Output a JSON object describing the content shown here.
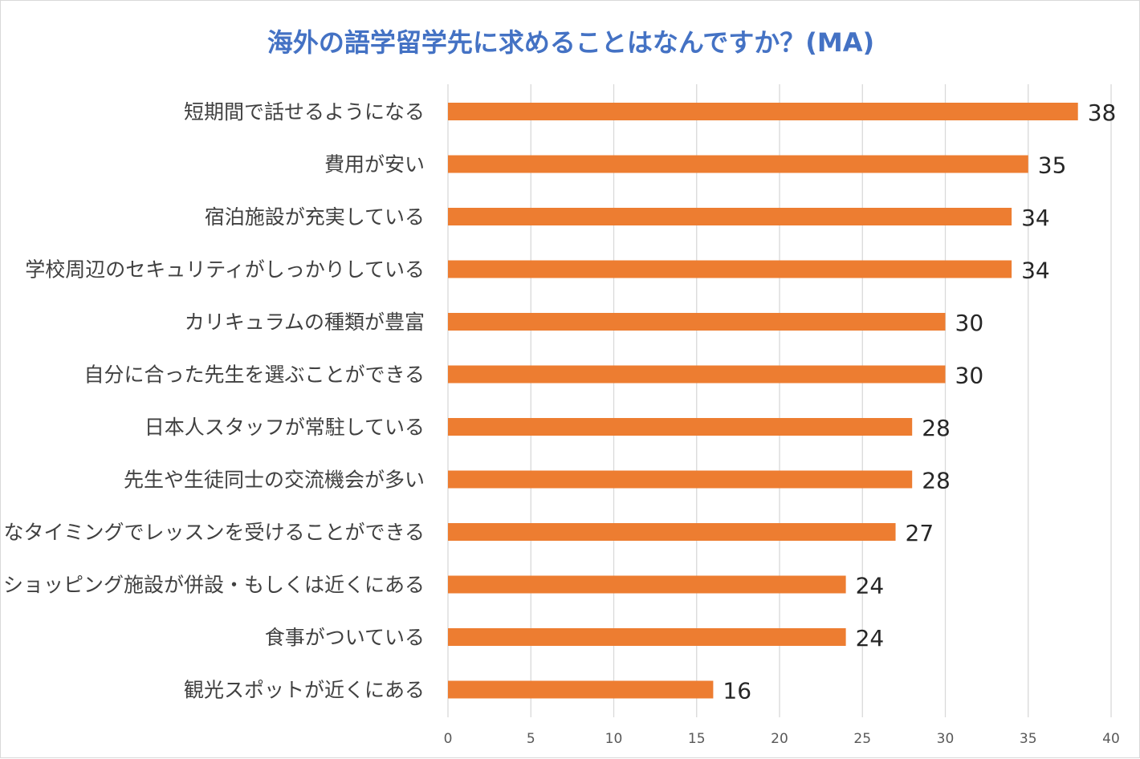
{
  "chart_data": {
    "type": "bar",
    "orientation": "horizontal",
    "title": "海外の語学留学先に求めることはなんですか？(MA)",
    "xlabel": "",
    "ylabel": "",
    "xlim": [
      0,
      40
    ],
    "ticks": [
      0,
      5,
      10,
      15,
      20,
      25,
      30,
      35,
      40
    ],
    "grid": true,
    "legend": "none",
    "categories": [
      "短期間で話せるようになる",
      "費用が安い",
      "宿泊施設が充実している",
      "学校周辺のセキュリティがしっかりしている",
      "カリキュラムの種類が豊富",
      "自分に合った先生を選ぶことができる",
      "日本人スタッフが常駐している",
      "先生や生徒同士の交流機会が多い",
      "好きなタイミングでレッスンを受けることができる",
      "ショッピング施設が併設・もしくは近くにある",
      "食事がついている",
      "観光スポットが近くにある"
    ],
    "values": [
      38,
      35,
      34,
      34,
      30,
      30,
      28,
      28,
      27,
      24,
      24,
      16
    ],
    "colors": {
      "bar": "#ed7d31",
      "grid": "#d9d9d9",
      "title": "#4472c4"
    }
  }
}
